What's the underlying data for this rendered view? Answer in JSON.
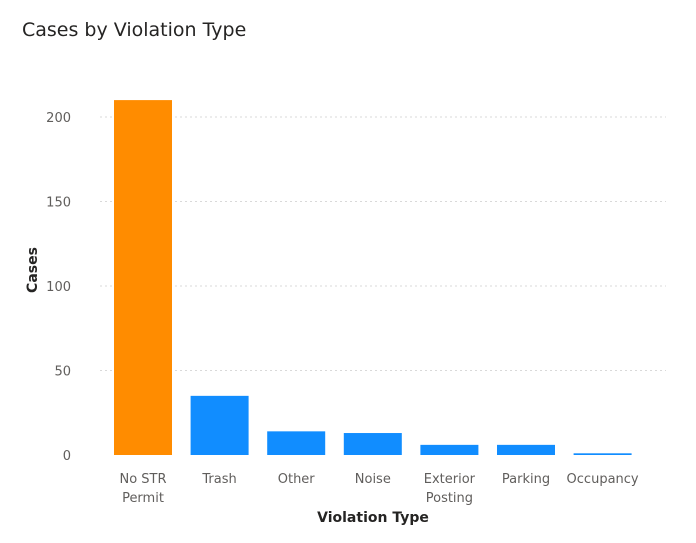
{
  "title": "Cases by Violation Type",
  "chart_data": {
    "type": "bar",
    "title": "Cases by Violation Type",
    "xlabel": "Violation Type",
    "ylabel": "Cases",
    "categories": [
      "No STR Permit",
      "Trash",
      "Other",
      "Noise",
      "Exterior Posting",
      "Parking",
      "Occupancy"
    ],
    "category_lines": [
      [
        "No STR",
        "Permit"
      ],
      [
        "Trash"
      ],
      [
        "Other"
      ],
      [
        "Noise"
      ],
      [
        "Exterior",
        "Posting"
      ],
      [
        "Parking"
      ],
      [
        "Occupancy"
      ]
    ],
    "values": [
      210,
      35,
      14,
      13,
      6,
      6,
      1
    ],
    "bar_colors": [
      "#FF8C00",
      "#118DFF",
      "#118DFF",
      "#118DFF",
      "#118DFF",
      "#118DFF",
      "#118DFF"
    ],
    "yticks": [
      0,
      50,
      100,
      150,
      200
    ],
    "ylim": [
      0,
      215
    ],
    "grid": true,
    "legend": "none"
  }
}
